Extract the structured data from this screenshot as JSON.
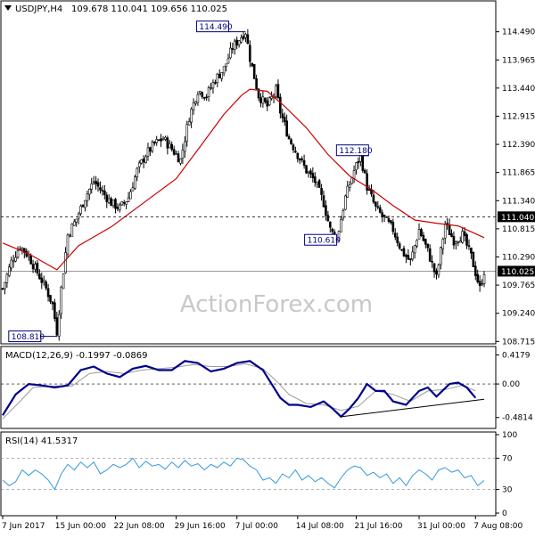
{
  "header": {
    "symbol_timeframe": "USDJPY,H4",
    "ohlc": "109.678 110.041 109.656 110.025"
  },
  "watermark": "ActionForex.com",
  "colors": {
    "up": "#000000",
    "down": "#000000",
    "ma": "#cc0000",
    "macd": "#00008b",
    "signal": "#9a9a9a",
    "rsi": "#3399dd",
    "hline": "#000000",
    "label_box": "#000080"
  },
  "chart_data": [
    {
      "type": "candlestick",
      "title": "USDJPY,H4 109.678 110.041 109.656 110.025",
      "ylim": [
        108.72,
        114.75
      ],
      "y_ticks": [
        "114.490",
        "113.965",
        "113.440",
        "112.915",
        "112.390",
        "111.865",
        "111.340",
        "110.815",
        "110.290",
        "109.765",
        "109.240",
        "108.715"
      ],
      "x_ticks": [
        "7 Jun 2017",
        "15 Jun 00:00",
        "22 Jun 08:00",
        "29 Jun 16:00",
        "7 Jul 00:00",
        "14 Jul 08:00",
        "21 Jul 16:00",
        "31 Jul 00:00",
        "7 Aug 08:00"
      ],
      "price_levels": [
        {
          "label": "111.040",
          "value": 111.04,
          "style": "dashed"
        },
        {
          "label": "110.025",
          "value": 110.025,
          "style": "solid"
        }
      ],
      "annotations": [
        {
          "text": "114.490",
          "value": 114.49
        },
        {
          "text": "112.180",
          "value": 112.18
        },
        {
          "text": "110.610",
          "value": 110.61
        },
        {
          "text": "108.810",
          "value": 108.81
        }
      ],
      "close_path": [
        [
          0,
          109.7
        ],
        [
          4,
          110.2
        ],
        [
          8,
          110.5
        ],
        [
          12,
          110.3
        ],
        [
          16,
          110.0
        ],
        [
          20,
          109.7
        ],
        [
          23,
          109.4
        ],
        [
          25,
          108.9
        ],
        [
          27,
          109.7
        ],
        [
          30,
          110.7
        ],
        [
          34,
          111.0
        ],
        [
          38,
          111.4
        ],
        [
          42,
          111.7
        ],
        [
          46,
          111.5
        ],
        [
          50,
          111.3
        ],
        [
          54,
          111.2
        ],
        [
          58,
          111.4
        ],
        [
          62,
          111.9
        ],
        [
          66,
          112.2
        ],
        [
          70,
          112.4
        ],
        [
          74,
          112.5
        ],
        [
          78,
          112.3
        ],
        [
          82,
          112.1
        ],
        [
          86,
          112.9
        ],
        [
          90,
          113.4
        ],
        [
          94,
          113.3
        ],
        [
          98,
          113.6
        ],
        [
          102,
          113.8
        ],
        [
          106,
          114.2
        ],
        [
          110,
          114.4
        ],
        [
          112,
          114.49
        ],
        [
          114,
          114.0
        ],
        [
          118,
          113.3
        ],
        [
          122,
          113.1
        ],
        [
          126,
          113.4
        ],
        [
          128,
          113.0
        ],
        [
          132,
          112.5
        ],
        [
          136,
          112.2
        ],
        [
          140,
          111.9
        ],
        [
          144,
          111.7
        ],
        [
          148,
          111.3
        ],
        [
          151,
          110.8
        ],
        [
          154,
          110.61
        ],
        [
          158,
          111.4
        ],
        [
          162,
          111.9
        ],
        [
          165,
          112.18
        ],
        [
          168,
          111.6
        ],
        [
          172,
          111.2
        ],
        [
          176,
          111.0
        ],
        [
          180,
          110.8
        ],
        [
          184,
          110.4
        ],
        [
          188,
          110.2
        ],
        [
          192,
          110.8
        ],
        [
          196,
          110.4
        ],
        [
          200,
          109.9
        ],
        [
          204,
          110.9
        ],
        [
          208,
          110.6
        ],
        [
          212,
          110.7
        ],
        [
          216,
          110.3
        ],
        [
          220,
          109.7
        ],
        [
          222,
          110.025
        ]
      ],
      "ma_path": [
        [
          0,
          110.55
        ],
        [
          12,
          110.35
        ],
        [
          25,
          110.05
        ],
        [
          35,
          110.5
        ],
        [
          50,
          110.85
        ],
        [
          65,
          111.3
        ],
        [
          80,
          111.75
        ],
        [
          92,
          112.4
        ],
        [
          102,
          112.95
        ],
        [
          110,
          113.3
        ],
        [
          114,
          113.42
        ],
        [
          122,
          113.38
        ],
        [
          130,
          113.1
        ],
        [
          140,
          112.7
        ],
        [
          150,
          112.2
        ],
        [
          160,
          111.8
        ],
        [
          170,
          111.55
        ],
        [
          180,
          111.25
        ],
        [
          190,
          110.98
        ],
        [
          200,
          110.92
        ],
        [
          210,
          110.87
        ],
        [
          222,
          110.65
        ]
      ]
    },
    {
      "type": "line",
      "title": "MACD(12,26,9) -0.1997 -0.0869",
      "ylim": [
        -0.6,
        0.5
      ],
      "y_ticks": [
        "0.4179",
        "0.00",
        "-0.4814"
      ],
      "macd_path": [
        [
          0,
          -0.45
        ],
        [
          6,
          -0.15
        ],
        [
          12,
          0.0
        ],
        [
          18,
          -0.02
        ],
        [
          24,
          -0.05
        ],
        [
          30,
          -0.02
        ],
        [
          36,
          0.2
        ],
        [
          42,
          0.25
        ],
        [
          48,
          0.15
        ],
        [
          54,
          0.1
        ],
        [
          60,
          0.22
        ],
        [
          66,
          0.26
        ],
        [
          72,
          0.2
        ],
        [
          78,
          0.2
        ],
        [
          84,
          0.33
        ],
        [
          90,
          0.3
        ],
        [
          96,
          0.18
        ],
        [
          102,
          0.22
        ],
        [
          108,
          0.3
        ],
        [
          114,
          0.33
        ],
        [
          120,
          0.2
        ],
        [
          124,
          0.0
        ],
        [
          128,
          -0.2
        ],
        [
          132,
          -0.3
        ],
        [
          136,
          -0.3
        ],
        [
          142,
          -0.33
        ],
        [
          148,
          -0.25
        ],
        [
          152,
          -0.35
        ],
        [
          156,
          -0.47
        ],
        [
          160,
          -0.35
        ],
        [
          164,
          -0.2
        ],
        [
          168,
          0.0
        ],
        [
          172,
          -0.1
        ],
        [
          176,
          -0.1
        ],
        [
          180,
          -0.25
        ],
        [
          186,
          -0.3
        ],
        [
          192,
          -0.1
        ],
        [
          196,
          -0.05
        ],
        [
          200,
          -0.18
        ],
        [
          206,
          0.0
        ],
        [
          210,
          0.02
        ],
        [
          214,
          -0.05
        ],
        [
          218,
          -0.2
        ]
      ],
      "signal_path": [
        [
          0,
          -0.5
        ],
        [
          8,
          -0.25
        ],
        [
          14,
          -0.05
        ],
        [
          24,
          -0.03
        ],
        [
          32,
          -0.03
        ],
        [
          40,
          0.15
        ],
        [
          48,
          0.18
        ],
        [
          56,
          0.15
        ],
        [
          64,
          0.2
        ],
        [
          72,
          0.22
        ],
        [
          80,
          0.24
        ],
        [
          88,
          0.28
        ],
        [
          96,
          0.25
        ],
        [
          104,
          0.25
        ],
        [
          112,
          0.29
        ],
        [
          120,
          0.22
        ],
        [
          126,
          0.05
        ],
        [
          132,
          -0.15
        ],
        [
          140,
          -0.28
        ],
        [
          148,
          -0.3
        ],
        [
          156,
          -0.38
        ],
        [
          164,
          -0.32
        ],
        [
          172,
          -0.1
        ],
        [
          180,
          -0.15
        ],
        [
          188,
          -0.25
        ],
        [
          196,
          -0.1
        ],
        [
          204,
          -0.08
        ],
        [
          212,
          -0.02
        ],
        [
          218,
          -0.1
        ]
      ],
      "trendline": [
        [
          156,
          -0.47
        ],
        [
          222,
          -0.22
        ]
      ]
    },
    {
      "type": "line",
      "title": "RSI(14) 41.5317",
      "ylim": [
        0,
        100
      ],
      "y_ticks": [
        "100",
        "70",
        "30",
        "0"
      ],
      "levels": [
        70,
        30
      ],
      "rsi_path": [
        [
          0,
          42
        ],
        [
          3,
          35
        ],
        [
          6,
          40
        ],
        [
          9,
          55
        ],
        [
          12,
          48
        ],
        [
          15,
          55
        ],
        [
          18,
          50
        ],
        [
          21,
          42
        ],
        [
          24,
          30
        ],
        [
          27,
          50
        ],
        [
          30,
          62
        ],
        [
          33,
          55
        ],
        [
          36,
          65
        ],
        [
          39,
          58
        ],
        [
          42,
          65
        ],
        [
          45,
          50
        ],
        [
          48,
          55
        ],
        [
          51,
          62
        ],
        [
          54,
          58
        ],
        [
          57,
          62
        ],
        [
          60,
          70
        ],
        [
          63,
          58
        ],
        [
          66,
          66
        ],
        [
          69,
          60
        ],
        [
          72,
          62
        ],
        [
          75,
          56
        ],
        [
          78,
          65
        ],
        [
          81,
          58
        ],
        [
          84,
          67
        ],
        [
          87,
          60
        ],
        [
          90,
          63
        ],
        [
          93,
          55
        ],
        [
          96,
          62
        ],
        [
          99,
          58
        ],
        [
          102,
          65
        ],
        [
          105,
          60
        ],
        [
          108,
          70
        ],
        [
          111,
          68
        ],
        [
          114,
          60
        ],
        [
          117,
          55
        ],
        [
          120,
          42
        ],
        [
          123,
          45
        ],
        [
          126,
          38
        ],
        [
          129,
          50
        ],
        [
          132,
          45
        ],
        [
          135,
          55
        ],
        [
          138,
          42
        ],
        [
          141,
          48
        ],
        [
          144,
          40
        ],
        [
          147,
          45
        ],
        [
          150,
          38
        ],
        [
          153,
          32
        ],
        [
          156,
          45
        ],
        [
          159,
          55
        ],
        [
          162,
          60
        ],
        [
          165,
          58
        ],
        [
          168,
          48
        ],
        [
          171,
          52
        ],
        [
          174,
          45
        ],
        [
          177,
          50
        ],
        [
          180,
          38
        ],
        [
          183,
          45
        ],
        [
          186,
          35
        ],
        [
          189,
          48
        ],
        [
          192,
          55
        ],
        [
          195,
          50
        ],
        [
          198,
          42
        ],
        [
          201,
          55
        ],
        [
          204,
          58
        ],
        [
          207,
          52
        ],
        [
          210,
          55
        ],
        [
          213,
          45
        ],
        [
          216,
          48
        ],
        [
          219,
          35
        ],
        [
          222,
          41.5
        ]
      ]
    }
  ]
}
